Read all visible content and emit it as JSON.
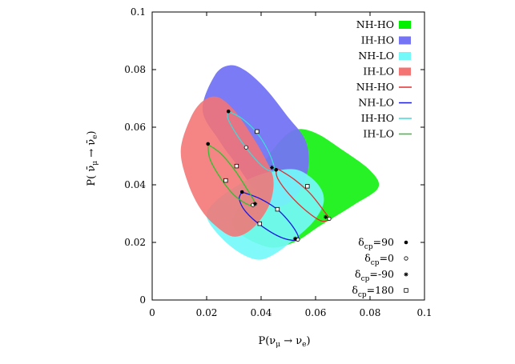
{
  "chart_data": {
    "type": "scatter",
    "title": "",
    "xlabel": "P(νμ → νe)",
    "ylabel": "P(ν̄μ → ν̄e)",
    "xlim": [
      0,
      0.1
    ],
    "ylim": [
      0,
      0.1
    ],
    "xticks": [
      "0",
      "0.02",
      "0.04",
      "0.06",
      "0.08",
      "0.1"
    ],
    "yticks": [
      "0",
      "0.02",
      "0.04",
      "0.06",
      "0.08",
      "0.1"
    ],
    "xtick_values": [
      0,
      0.02,
      0.04,
      0.06,
      0.08,
      0.1
    ],
    "ytick_values": [
      0,
      0.02,
      0.04,
      0.06,
      0.08,
      0.1
    ],
    "legend_position": "top-right",
    "regions": [
      {
        "name": "NH-HO",
        "color": "#00f000",
        "opacity": 0.85,
        "points": [
          [
            0.03,
            0.025
          ],
          [
            0.042,
            0.0185
          ],
          [
            0.052,
            0.02
          ],
          [
            0.062,
            0.026
          ],
          [
            0.074,
            0.033
          ],
          [
            0.083,
            0.039
          ],
          [
            0.08,
            0.045
          ],
          [
            0.07,
            0.052
          ],
          [
            0.06,
            0.058
          ],
          [
            0.052,
            0.059
          ],
          [
            0.045,
            0.053
          ],
          [
            0.038,
            0.043
          ],
          [
            0.032,
            0.033
          ]
        ]
      },
      {
        "name": "IH-HO",
        "color": "#7474f4",
        "opacity": 0.95,
        "points": [
          [
            0.0185,
            0.066
          ],
          [
            0.023,
            0.078
          ],
          [
            0.0285,
            0.0815
          ],
          [
            0.0345,
            0.0795
          ],
          [
            0.042,
            0.073
          ],
          [
            0.0495,
            0.064
          ],
          [
            0.056,
            0.056
          ],
          [
            0.0575,
            0.048
          ],
          [
            0.0555,
            0.04
          ],
          [
            0.0505,
            0.034
          ],
          [
            0.044,
            0.033
          ],
          [
            0.037,
            0.039
          ],
          [
            0.031,
            0.047
          ],
          [
            0.0245,
            0.0555
          ]
        ]
      },
      {
        "name": "NH-LO",
        "color": "#74f8f8",
        "opacity": 0.92,
        "points": [
          [
            0.02,
            0.029
          ],
          [
            0.025,
            0.022
          ],
          [
            0.032,
            0.0165
          ],
          [
            0.039,
            0.014
          ],
          [
            0.045,
            0.016
          ],
          [
            0.052,
            0.021
          ],
          [
            0.059,
            0.027
          ],
          [
            0.063,
            0.034
          ],
          [
            0.061,
            0.04
          ],
          [
            0.054,
            0.045
          ],
          [
            0.046,
            0.045
          ],
          [
            0.038,
            0.043
          ],
          [
            0.03,
            0.039
          ],
          [
            0.023,
            0.034
          ]
        ]
      },
      {
        "name": "IH-LO",
        "color": "#f47474",
        "opacity": 0.88,
        "points": [
          [
            0.0105,
            0.052
          ],
          [
            0.014,
            0.063
          ],
          [
            0.0185,
            0.069
          ],
          [
            0.024,
            0.0705
          ],
          [
            0.03,
            0.066
          ],
          [
            0.036,
            0.058
          ],
          [
            0.041,
            0.05
          ],
          [
            0.0445,
            0.042
          ],
          [
            0.043,
            0.033
          ],
          [
            0.037,
            0.025
          ],
          [
            0.03,
            0.022
          ],
          [
            0.023,
            0.026
          ],
          [
            0.0175,
            0.032
          ],
          [
            0.013,
            0.041
          ]
        ]
      }
    ],
    "curves": [
      {
        "name": "NH-HO",
        "color": "#e03030",
        "points": [
          [
            0.046,
            0.0455
          ],
          [
            0.052,
            0.042
          ],
          [
            0.058,
            0.037
          ],
          [
            0.063,
            0.031
          ],
          [
            0.0648,
            0.0282
          ],
          [
            0.062,
            0.0275
          ],
          [
            0.0565,
            0.031
          ],
          [
            0.0505,
            0.0365
          ],
          [
            0.0462,
            0.042
          ],
          [
            0.0455,
            0.045
          ]
        ]
      },
      {
        "name": "NH-LO",
        "color": "#1a1ae0",
        "points": [
          [
            0.033,
            0.0375
          ],
          [
            0.04,
            0.035
          ],
          [
            0.0465,
            0.031
          ],
          [
            0.052,
            0.025
          ],
          [
            0.0535,
            0.021
          ],
          [
            0.048,
            0.0215
          ],
          [
            0.0405,
            0.0255
          ],
          [
            0.0345,
            0.0305
          ],
          [
            0.032,
            0.035
          ],
          [
            0.033,
            0.0375
          ]
        ]
      },
      {
        "name": "IH-HO",
        "color": "#40d8d8",
        "points": [
          [
            0.028,
            0.0655
          ],
          [
            0.033,
            0.063
          ],
          [
            0.0385,
            0.058
          ],
          [
            0.043,
            0.051
          ],
          [
            0.0448,
            0.045
          ],
          [
            0.041,
            0.046
          ],
          [
            0.036,
            0.051
          ],
          [
            0.031,
            0.0575
          ],
          [
            0.0278,
            0.063
          ],
          [
            0.028,
            0.0655
          ]
        ]
      },
      {
        "name": "IH-LO",
        "color": "#30c030",
        "points": [
          [
            0.0205,
            0.054
          ],
          [
            0.025,
            0.051
          ],
          [
            0.03,
            0.0455
          ],
          [
            0.0345,
            0.039
          ],
          [
            0.0378,
            0.0335
          ],
          [
            0.0355,
            0.033
          ],
          [
            0.03,
            0.0365
          ],
          [
            0.025,
            0.0425
          ],
          [
            0.0212,
            0.049
          ],
          [
            0.0205,
            0.054
          ]
        ]
      }
    ],
    "markers": [
      {
        "delta": 90,
        "symbol": "filled-circle",
        "points": [
          [
            0.0455,
            0.0452
          ],
          [
            0.033,
            0.0375
          ],
          [
            0.028,
            0.0655
          ],
          [
            0.0205,
            0.0542
          ]
        ]
      },
      {
        "delta": 0,
        "symbol": "open-circle",
        "points": [
          [
            0.065,
            0.0282
          ],
          [
            0.0535,
            0.021
          ],
          [
            0.0345,
            0.053
          ],
          [
            0.037,
            0.033
          ]
        ]
      },
      {
        "delta": -90,
        "symbol": "star",
        "points": [
          [
            0.0637,
            0.0288
          ],
          [
            0.0525,
            0.0213
          ],
          [
            0.044,
            0.046
          ],
          [
            0.0378,
            0.0334
          ]
        ]
      },
      {
        "delta": 180,
        "symbol": "open-square",
        "points": [
          [
            0.057,
            0.0395
          ],
          [
            0.0395,
            0.0265
          ],
          [
            0.0385,
            0.0585
          ],
          [
            0.031,
            0.0465
          ],
          [
            0.046,
            0.0315
          ],
          [
            0.027,
            0.0415
          ]
        ]
      }
    ],
    "legend": {
      "patches": [
        "NH-HO",
        "IH-HO",
        "NH-LO",
        "IH-LO"
      ],
      "lines": [
        "NH-HO",
        "NH-LO",
        "IH-HO",
        "IH-LO"
      ],
      "line_colors": [
        "#e03030",
        "#1a1ae0",
        "#40d8d8",
        "#30c030"
      ],
      "patch_colors": [
        "#00f000",
        "#7474f4",
        "#74f8f8",
        "#f47474"
      ],
      "markers": [
        {
          "label_main": "δ",
          "label_sub": "cp",
          "label_value": "=90",
          "symbol": "filled-circle"
        },
        {
          "label_main": "δ",
          "label_sub": "cp",
          "label_value": "=0",
          "symbol": "open-circle"
        },
        {
          "label_main": "δ",
          "label_sub": "cp",
          "label_value": "=-90",
          "symbol": "star"
        },
        {
          "label_main": "δ",
          "label_sub": "cp",
          "label_value": "=180",
          "symbol": "open-square"
        }
      ]
    }
  }
}
